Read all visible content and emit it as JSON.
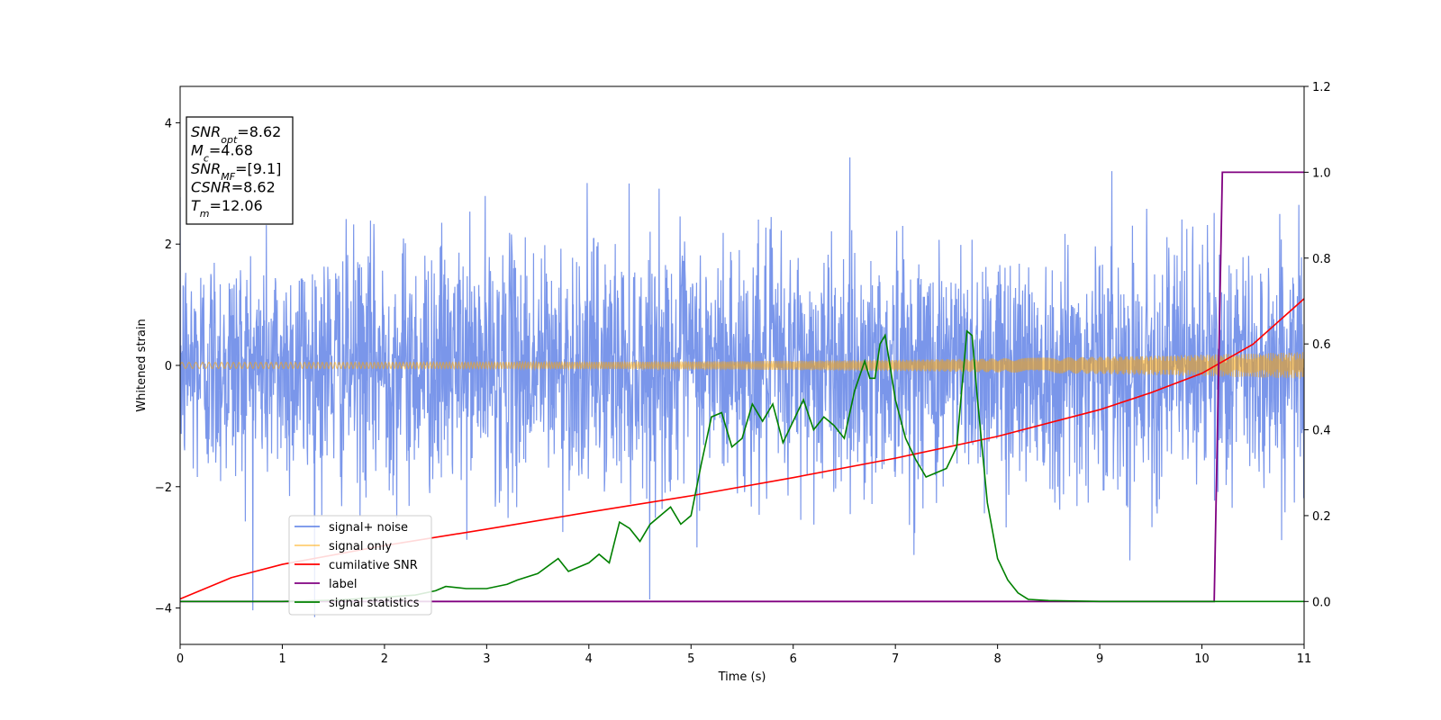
{
  "chart_data": {
    "type": "line",
    "xlabel": "Time (s)",
    "ylabel": "Whitened strain",
    "xlim": [
      0,
      11
    ],
    "ylim_left": [
      -4.6,
      4.6
    ],
    "ylim_right": [
      -0.1,
      1.2
    ],
    "x_ticks": [
      0,
      1,
      2,
      3,
      4,
      5,
      6,
      7,
      8,
      9,
      10,
      11
    ],
    "y_ticks_left": [
      -4,
      -2,
      0,
      2,
      4
    ],
    "y_ticks_right": [
      0.0,
      0.2,
      0.4,
      0.6,
      0.8,
      1.0,
      1.2
    ],
    "y_tick_labels_left": [
      "−4",
      "−2",
      "0",
      "2",
      "4"
    ],
    "y_tick_labels_right": [
      "0.0",
      "0.2",
      "0.4",
      "0.6",
      "0.8",
      "1.0",
      "1.2"
    ],
    "grid": false,
    "legend_position": "lower-left",
    "annotation": {
      "lines": [
        {
          "base": "SNR",
          "sub": "opt",
          "rest": "=8.62"
        },
        {
          "base": "M",
          "sub": "c",
          "rest": "=4.68"
        },
        {
          "base": "SNR",
          "sub": "MF",
          "rest": "=[9.1]"
        },
        {
          "base": "CSNR",
          "sub": "",
          "rest": "=8.62"
        },
        {
          "base": "T",
          "sub": "m",
          "rest": "=12.06"
        }
      ]
    },
    "series": [
      {
        "name": "signal+ noise",
        "axis": "left",
        "color": "#4169e1",
        "description_kind": "noise",
        "noise_sigma": 1.0,
        "noise_peak_abs": 4.15,
        "sample_count": 3000
      },
      {
        "name": "signal only",
        "axis": "left",
        "color": "#ffa500",
        "description_kind": "chirp",
        "amplitude_start": 0.05,
        "amplitude_end": 0.22
      },
      {
        "name": "cumilative SNR",
        "axis": "left",
        "color": "#ff0000",
        "x": [
          0,
          0.5,
          1,
          2,
          3,
          4,
          5,
          6,
          7,
          8,
          9,
          9.5,
          10,
          10.5,
          11
        ],
        "y": [
          -3.85,
          -3.5,
          -3.28,
          -2.97,
          -2.7,
          -2.42,
          -2.15,
          -1.85,
          -1.53,
          -1.17,
          -0.73,
          -0.45,
          -0.13,
          0.35,
          1.1
        ]
      },
      {
        "name": "label",
        "axis": "right",
        "color": "#800080",
        "x": [
          0,
          10.12,
          10.2,
          11
        ],
        "y": [
          0.0,
          0.0,
          1.0,
          1.0
        ]
      },
      {
        "name": "signal statistics",
        "axis": "right",
        "color": "#008000",
        "x": [
          0,
          0.5,
          1.0,
          1.5,
          2.0,
          2.3,
          2.5,
          2.6,
          2.8,
          3.0,
          3.2,
          3.3,
          3.5,
          3.7,
          3.8,
          4.0,
          4.1,
          4.2,
          4.3,
          4.4,
          4.5,
          4.6,
          4.7,
          4.8,
          4.9,
          5.0,
          5.1,
          5.2,
          5.3,
          5.4,
          5.5,
          5.6,
          5.7,
          5.8,
          5.9,
          6.0,
          6.1,
          6.2,
          6.3,
          6.4,
          6.5,
          6.6,
          6.7,
          6.75,
          6.8,
          6.85,
          6.9,
          7.0,
          7.1,
          7.2,
          7.3,
          7.4,
          7.5,
          7.6,
          7.7,
          7.75,
          7.8,
          7.9,
          8.0,
          8.1,
          8.2,
          8.3,
          8.5,
          9.0,
          10.0,
          11.0
        ],
        "y": [
          0.0,
          0.0,
          0.0,
          0.003,
          0.01,
          0.015,
          0.025,
          0.035,
          0.03,
          0.03,
          0.04,
          0.05,
          0.065,
          0.1,
          0.07,
          0.09,
          0.11,
          0.09,
          0.185,
          0.17,
          0.14,
          0.18,
          0.2,
          0.22,
          0.18,
          0.2,
          0.32,
          0.43,
          0.44,
          0.36,
          0.38,
          0.46,
          0.42,
          0.46,
          0.37,
          0.42,
          0.47,
          0.4,
          0.43,
          0.41,
          0.38,
          0.49,
          0.56,
          0.52,
          0.52,
          0.6,
          0.62,
          0.47,
          0.38,
          0.33,
          0.29,
          0.3,
          0.31,
          0.36,
          0.63,
          0.62,
          0.48,
          0.23,
          0.1,
          0.05,
          0.02,
          0.005,
          0.002,
          0.0,
          0.0,
          0.0
        ]
      }
    ]
  }
}
